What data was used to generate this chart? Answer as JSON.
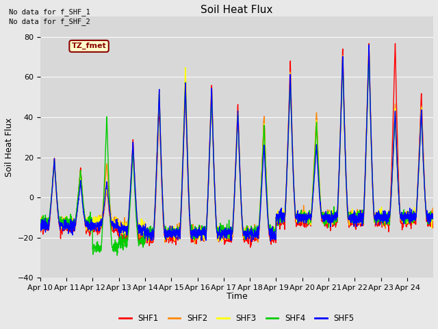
{
  "title": "Soil Heat Flux",
  "ylabel": "Soil Heat Flux",
  "xlabel": "Time",
  "annotation_lines": [
    "No data for f_SHF_1",
    "No data for f_SHF_2"
  ],
  "legend_label": "TZ_fmet",
  "series_labels": [
    "SHF1",
    "SHF2",
    "SHF3",
    "SHF4",
    "SHF5"
  ],
  "series_colors": [
    "#ff0000",
    "#ff8800",
    "#ffff00",
    "#00cc00",
    "#0000ff"
  ],
  "ylim": [
    -40,
    90
  ],
  "yticks": [
    -40,
    -20,
    0,
    20,
    40,
    60,
    80
  ],
  "fig_facecolor": "#e8e8e8",
  "ax_facecolor": "#d8d8d8",
  "n_days": 15,
  "points_per_day": 144,
  "peaks_shf1": [
    20,
    15,
    5,
    29,
    47,
    57,
    57,
    48,
    41,
    68,
    40,
    75,
    78,
    78,
    53
  ],
  "peaks_shf2": [
    19,
    14,
    18,
    25,
    54,
    64,
    55,
    44,
    41,
    64,
    43,
    72,
    77,
    47,
    47
  ],
  "peaks_shf3": [
    18,
    13,
    5,
    24,
    53,
    66,
    54,
    43,
    38,
    63,
    39,
    71,
    76,
    45,
    45
  ],
  "peaks_shf4": [
    19,
    14,
    41,
    24,
    52,
    58,
    53,
    42,
    37,
    60,
    38,
    70,
    74,
    42,
    43
  ],
  "peaks_shf5": [
    19,
    8,
    8,
    28,
    54,
    58,
    55,
    44,
    27,
    62,
    27,
    72,
    76,
    44,
    44
  ],
  "troughs_shf1": [
    -15,
    -15,
    -15,
    -20,
    -20,
    -20,
    -18,
    -20,
    -20,
    -12,
    -12,
    -12,
    -12,
    -12,
    -12
  ],
  "troughs_shf2": [
    -13,
    -13,
    -12,
    -15,
    -18,
    -18,
    -18,
    -18,
    -18,
    -10,
    -10,
    -10,
    -10,
    -10,
    -10
  ],
  "troughs_shf3": [
    -13,
    -13,
    -12,
    -15,
    -18,
    -18,
    -18,
    -18,
    -18,
    -10,
    -10,
    -10,
    -10,
    -10,
    -10
  ],
  "troughs_shf4": [
    -12,
    -12,
    -25,
    -22,
    -17,
    -17,
    -17,
    -17,
    -17,
    -10,
    -10,
    -10,
    -10,
    -10,
    -10
  ],
  "troughs_shf5": [
    -14,
    -14,
    -14,
    -16,
    -18,
    -18,
    -18,
    -18,
    -18,
    -10,
    -10,
    -10,
    -10,
    -10,
    -10
  ]
}
